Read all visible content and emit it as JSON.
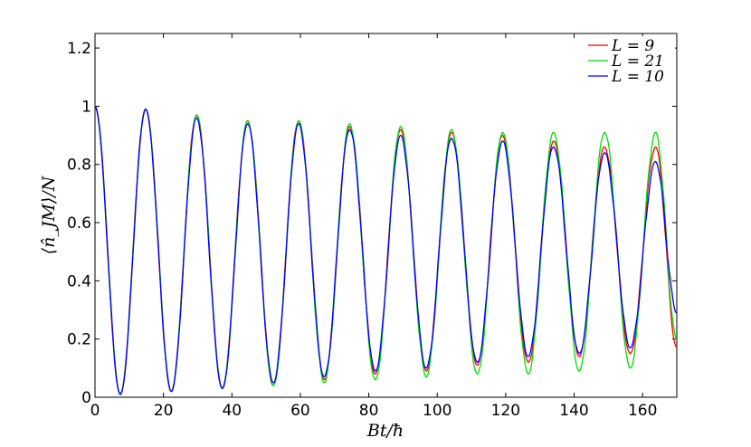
{
  "chart_data": {
    "type": "line",
    "title": "",
    "xlabel": "Bt/ħ",
    "ylabel": "⟨n̂_JM⟩/N",
    "xlim": [
      0,
      170
    ],
    "ylim": [
      0,
      1.25
    ],
    "xticks": [
      0,
      20,
      40,
      60,
      80,
      100,
      120,
      140,
      160
    ],
    "yticks": [
      0,
      0.2,
      0.4,
      0.6,
      0.8,
      1,
      1.2
    ],
    "xtick_labels": [
      "0",
      "20",
      "40",
      "60",
      "80",
      "100",
      "120",
      "140",
      "160"
    ],
    "ytick_labels": [
      "0",
      "0.2",
      "0.4",
      "0.6",
      "0.8",
      "1",
      "1.2"
    ],
    "grid": false,
    "legend_position": "top-right",
    "oscillation_period": 14.9,
    "series": [
      {
        "name": "L = 9",
        "color": "#ff0000",
        "peaks": [
          [
            0,
            1.0
          ],
          [
            14.8,
            0.99
          ],
          [
            29.7,
            0.97
          ],
          [
            44.6,
            0.95
          ],
          [
            59.5,
            0.95
          ],
          [
            74.4,
            0.93
          ],
          [
            89.3,
            0.92
          ],
          [
            104.2,
            0.91
          ],
          [
            119.1,
            0.9
          ],
          [
            134.0,
            0.88
          ],
          [
            148.9,
            0.86
          ],
          [
            163.8,
            0.86
          ]
        ],
        "troughs": [
          [
            7.4,
            0.01
          ],
          [
            22.3,
            0.02
          ],
          [
            37.2,
            0.03
          ],
          [
            52.1,
            0.04
          ],
          [
            67.0,
            0.06
          ],
          [
            81.9,
            0.08
          ],
          [
            96.8,
            0.09
          ],
          [
            111.7,
            0.11
          ],
          [
            126.6,
            0.12
          ],
          [
            141.5,
            0.14
          ],
          [
            156.4,
            0.15
          ],
          [
            170,
            0.17
          ]
        ]
      },
      {
        "name": "L = 21",
        "color": "#00dd00",
        "peaks": [
          [
            0,
            1.0
          ],
          [
            14.8,
            0.99
          ],
          [
            29.7,
            0.97
          ],
          [
            44.6,
            0.95
          ],
          [
            59.5,
            0.95
          ],
          [
            74.4,
            0.94
          ],
          [
            89.3,
            0.93
          ],
          [
            104.2,
            0.92
          ],
          [
            119.1,
            0.91
          ],
          [
            134.0,
            0.91
          ],
          [
            148.9,
            0.91
          ],
          [
            163.8,
            0.91
          ]
        ],
        "troughs": [
          [
            7.4,
            0.01
          ],
          [
            22.3,
            0.02
          ],
          [
            37.2,
            0.03
          ],
          [
            52.1,
            0.04
          ],
          [
            67.0,
            0.05
          ],
          [
            81.9,
            0.06
          ],
          [
            96.8,
            0.07
          ],
          [
            111.7,
            0.08
          ],
          [
            126.6,
            0.08
          ],
          [
            141.5,
            0.09
          ],
          [
            156.4,
            0.1
          ],
          [
            170,
            0.2
          ]
        ]
      },
      {
        "name": "L = 10",
        "color": "#0000ff",
        "peaks": [
          [
            0,
            1.0
          ],
          [
            14.8,
            0.99
          ],
          [
            29.7,
            0.96
          ],
          [
            44.6,
            0.94
          ],
          [
            59.5,
            0.94
          ],
          [
            74.4,
            0.92
          ],
          [
            89.3,
            0.9
          ],
          [
            104.2,
            0.89
          ],
          [
            119.1,
            0.88
          ],
          [
            134.0,
            0.86
          ],
          [
            148.9,
            0.84
          ],
          [
            163.8,
            0.81
          ]
        ],
        "troughs": [
          [
            7.4,
            0.01
          ],
          [
            22.3,
            0.02
          ],
          [
            37.2,
            0.03
          ],
          [
            52.1,
            0.05
          ],
          [
            67.0,
            0.07
          ],
          [
            81.9,
            0.09
          ],
          [
            96.8,
            0.1
          ],
          [
            111.7,
            0.12
          ],
          [
            126.6,
            0.14
          ],
          [
            141.5,
            0.15
          ],
          [
            156.4,
            0.17
          ],
          [
            170,
            0.29
          ]
        ]
      }
    ]
  }
}
